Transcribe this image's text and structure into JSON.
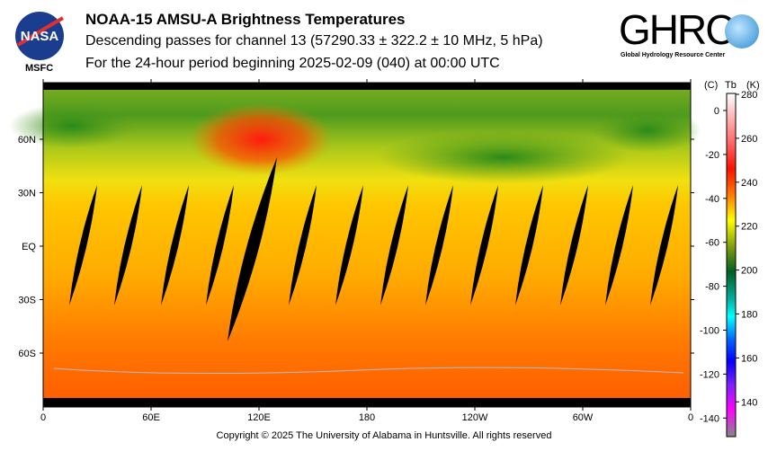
{
  "header": {
    "title": "NOAA-15 AMSU-A Brightness Temperatures",
    "subtitle": "Descending passes for channel 13 (57290.33 ± 322.2 ± 10 MHz, 5 hPa)",
    "period": "For the 24-hour period beginning 2025-02-09 (040) at 00:00 UTC",
    "left_logo": {
      "text": "NASA",
      "caption": "MSFC"
    },
    "right_logo": {
      "text": "GHRC",
      "caption": "Global Hydrology Resource Center"
    }
  },
  "footer": {
    "copyright": "Copyright © 2025 The University of Alabama in Huntsville.  All rights reserved"
  },
  "colors": {
    "red": "#ff2000",
    "orange": "#ff8a00",
    "yellow": "#ffdd00",
    "green": "#2a8a1a",
    "swath": "#000000",
    "coast": "#b8bcd0"
  },
  "chart_data": {
    "type": "heatmap",
    "title": "NOAA-15 AMSU-A Brightness Temperatures",
    "x_ticks": [
      "0",
      "60E",
      "120E",
      "180",
      "120W",
      "60W",
      "0"
    ],
    "y_ticks": [
      "60N",
      "30N",
      "EQ",
      "30S",
      "60S"
    ],
    "colorbar": {
      "header_c": "(C)",
      "header_tb": "Tb",
      "header_k": "(K)",
      "kelvin_ticks": [
        "280",
        "260",
        "240",
        "220",
        "200",
        "180",
        "160",
        "140"
      ],
      "celsius_ticks": [
        "0",
        "-20",
        "-40",
        "-60",
        "-80",
        "-100",
        "-120",
        "-140"
      ],
      "range_k": [
        127,
        280
      ]
    },
    "swath_gap_longitudes_deg_east": [
      30,
      55,
      81,
      106,
      130,
      152,
      178,
      203,
      228,
      253,
      278,
      303,
      328,
      353
    ]
  }
}
